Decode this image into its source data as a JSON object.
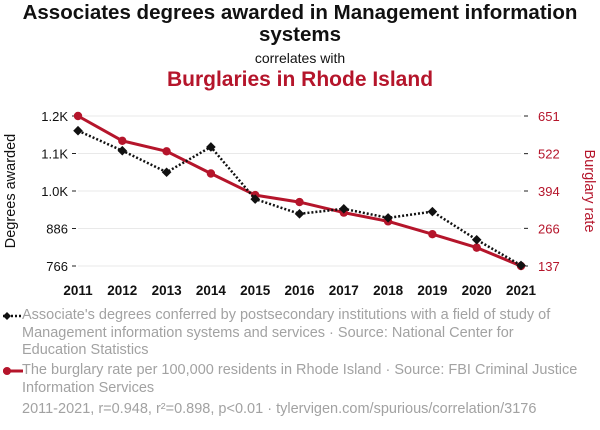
{
  "title": "Associates degrees awarded in Management information systems",
  "connector": "correlates with",
  "subtitle": "Burglaries in Rhode Island",
  "colors": {
    "series1": "#111111",
    "series2": "#b5152b",
    "grid": "#e9e9e9",
    "muted": "#a2a2a2"
  },
  "legend": {
    "series1": "Associate's degrees conferred by postsecondary institutions with a field of study of Management information systems and services · Source: National Center for Education Statistics",
    "series2": "The burglary rate per 100,000 residents in Rhode Island · Source: FBI Criminal Justice Information Services"
  },
  "footer": "2011-2021, r=0.948, r²=0.898, p<0.01 · tylervigen.com/spurious/correlation/3176",
  "chart_data": {
    "type": "line",
    "x": [
      2011,
      2012,
      2013,
      2014,
      2015,
      2016,
      2017,
      2018,
      2019,
      2020,
      2021
    ],
    "series": [
      {
        "name": "Degrees awarded",
        "axis": "left",
        "style": "dotted",
        "marker": "diamond",
        "values": [
          1199,
          1135,
          1066,
          1147,
          980,
          933,
          949,
          920,
          940,
          850,
          768
        ]
      },
      {
        "name": "Burglary rate",
        "axis": "right",
        "style": "solid",
        "marker": "circle",
        "values": [
          651,
          566,
          530,
          454,
          380,
          356,
          320,
          290,
          246,
          200,
          137
        ]
      }
    ],
    "ylabel_left": "Degrees awarded",
    "ylabel_right": "Burglary rate",
    "yticks_left": [
      {
        "v": 766,
        "label": "766"
      },
      {
        "v": 886,
        "label": "886"
      },
      {
        "v": 1006,
        "label": "1.0K"
      },
      {
        "v": 1126,
        "label": "1.1K"
      },
      {
        "v": 1246,
        "label": "1.2K"
      }
    ],
    "yticks_right": [
      {
        "v": 137,
        "label": "137"
      },
      {
        "v": 266,
        "label": "266"
      },
      {
        "v": 394,
        "label": "394"
      },
      {
        "v": 522,
        "label": "522"
      },
      {
        "v": 651,
        "label": "651"
      }
    ],
    "ylim_left": [
      766,
      1246
    ],
    "ylim_right": [
      137,
      651
    ],
    "grid": true
  }
}
